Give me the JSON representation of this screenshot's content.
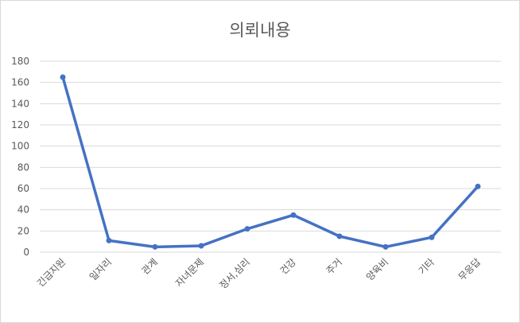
{
  "chart_data": {
    "type": "line",
    "title": "의뢰내용",
    "xlabel": "",
    "ylabel": "",
    "categories": [
      "긴급지원",
      "일자리",
      "관계",
      "자녀문제",
      "정서,심리",
      "건강",
      "주거",
      "양육비",
      "기타",
      "무응답"
    ],
    "series": [
      {
        "values": [
          165,
          11,
          5,
          6,
          22,
          35,
          15,
          5,
          14,
          62
        ]
      }
    ],
    "ylim": [
      0,
      180
    ],
    "yticks": [
      0,
      20,
      40,
      60,
      80,
      100,
      120,
      140,
      160,
      180
    ],
    "grid": true,
    "legend": "none",
    "colors": {
      "line": "#4472c4",
      "grid": "#d9d9d9",
      "text": "#595959"
    }
  }
}
